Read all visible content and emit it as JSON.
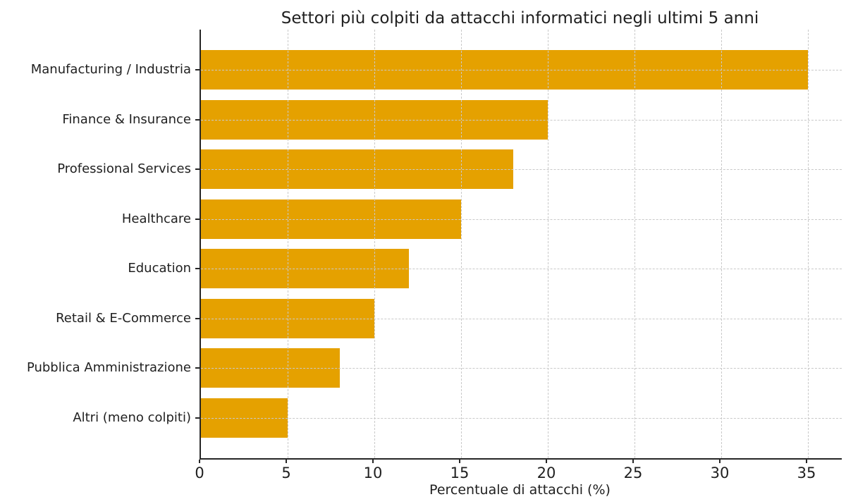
{
  "title": "Settori più colpiti da attacchi informatici negli ultimi 5 anni",
  "chart_data": {
    "type": "bar",
    "orientation": "horizontal",
    "title": "Settori più colpiti da attacchi informatici negli ultimi 5 anni",
    "categories": [
      "Manufacturing / Industria",
      "Finance & Insurance",
      "Professional Services",
      "Healthcare",
      "Education",
      "Retail & E-Commerce",
      "Pubblica Amministrazione",
      "Altri (meno colpiti)"
    ],
    "values": [
      35,
      20,
      18,
      15,
      12,
      10,
      8,
      5
    ],
    "xlabel": "Percentuale di attacchi (%)",
    "ylabel": "",
    "xlim": [
      0,
      36.95
    ],
    "xticks": [
      0,
      5,
      10,
      15,
      20,
      25,
      30,
      35
    ],
    "xtick_labels": [
      "0",
      "5",
      "10",
      "15",
      "20",
      "25",
      "30",
      "35"
    ],
    "grid": true,
    "grid_style": "dashed",
    "grid_on_top_of_bars": true,
    "legend_position": "none",
    "colors": {
      "bar": "#E5A100",
      "grid": "#C9C9C9",
      "axis": "#262626",
      "text": "#1F1F1F",
      "background": "#FFFFFF"
    }
  }
}
